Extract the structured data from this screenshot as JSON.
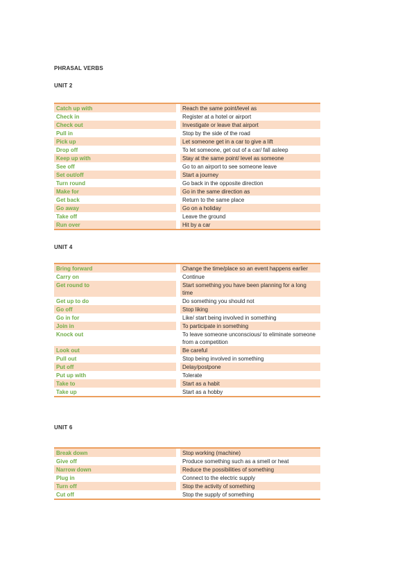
{
  "title": "PHRASAL VERBS",
  "colors": {
    "band_peach": "#fbdcc6",
    "table_border_orange": "#ec9f5e",
    "verb_green": "#6fac47",
    "meaning_text": "#262626"
  },
  "sections": [
    {
      "unit": "UNIT 2",
      "rows": [
        {
          "verb": "Catch up with",
          "meaning": "Reach the same point/level as"
        },
        {
          "verb": "Check in",
          "meaning": "Register at a hotel or airport"
        },
        {
          "verb": "Check out",
          "meaning": "Investigate or leave that airport"
        },
        {
          "verb": "Pull in",
          "meaning": "Stop by the side of the road"
        },
        {
          "verb": "Pick up",
          "meaning": "Let someone get in a car to give a lift"
        },
        {
          "verb": "Drop off",
          "meaning": "To let someone, get out of a car/ fall asleep"
        },
        {
          "verb": "Keep up with",
          "meaning": "Stay at the same point/ level as someone"
        },
        {
          "verb": "See off",
          "meaning": "Go to an airport to see someone leave"
        },
        {
          "verb": "Set out/off",
          "meaning": "Start a journey"
        },
        {
          "verb": "Turn round",
          "meaning": "Go back in the opposite direction"
        },
        {
          "verb": "Make for",
          "meaning": "Go in the same direction as"
        },
        {
          "verb": "Get back",
          "meaning": "Return to the same place"
        },
        {
          "verb": "Go away",
          "meaning": "Go on a holiday"
        },
        {
          "verb": "Take off",
          "meaning": "Leave the ground"
        },
        {
          "verb": "Run over",
          "meaning": "Hit by a car"
        }
      ]
    },
    {
      "unit": "UNIT 4",
      "rows": [
        {
          "verb": "Bring forward",
          "meaning": "Change the time/place so an event happens earlier"
        },
        {
          "verb": "Carry on",
          "meaning": "Continue"
        },
        {
          "verb": "Get round to",
          "meaning": "Start something you have been planning for a long time"
        },
        {
          "verb": "Get up to do",
          "meaning": "Do something you should not"
        },
        {
          "verb": "Go off",
          "meaning": "Stop liking"
        },
        {
          "verb": "Go in for",
          "meaning": "Like/ start being involved in something"
        },
        {
          "verb": "Join in",
          "meaning": "To participate in something"
        },
        {
          "verb": "Knock out",
          "meaning": "To leave someone unconscious/ to eliminate someone from a competition"
        },
        {
          "verb": "Look out",
          "meaning": "Be careful"
        },
        {
          "verb": "Pull out",
          "meaning": "Stop being involved in something"
        },
        {
          "verb": "Put off",
          "meaning": "Delay/postpone"
        },
        {
          "verb": "Put up with",
          "meaning": "Tolerate"
        },
        {
          "verb": "Take to",
          "meaning": "Start as a habit"
        },
        {
          "verb": "Take up",
          "meaning": "Start as a hobby"
        }
      ]
    },
    {
      "unit": "UNIT 6",
      "rows": [
        {
          "verb": "Break down",
          "meaning": "Stop working (machine)"
        },
        {
          "verb": "Give off",
          "meaning": "Produce something such as a smell or heat"
        },
        {
          "verb": "Narrow down",
          "meaning": "Reduce the possibilities of something"
        },
        {
          "verb": "Plug in",
          "meaning": "Connect to the electric supply"
        },
        {
          "verb": "Turn off",
          "meaning": "Stop the activity of something"
        },
        {
          "verb": "Cut off",
          "meaning": "Stop the supply of something"
        }
      ]
    }
  ]
}
